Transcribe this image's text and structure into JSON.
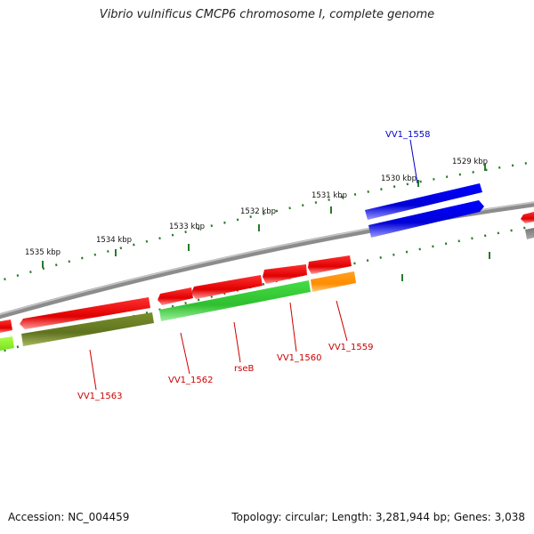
{
  "title": "Vibrio vulnificus CMCP6 chromosome I, complete genome",
  "footer": {
    "accession": "Accession: NC_004459",
    "topology": "Topology: circular; Length: 3,281,944 bp; Genes: 3,038"
  },
  "ruler_labels": [
    "1529 kbp",
    "1530 kbp",
    "1531 kbp",
    "1532 kbp",
    "1533 kbp",
    "1534 kbp",
    "1535 kbp"
  ],
  "gene_labels": [
    {
      "text": "VV1_1558",
      "color": "#0000cc"
    },
    {
      "text": "VV1_1559",
      "color": "#cc0000"
    },
    {
      "text": "VV1_1560",
      "color": "#cc0000"
    },
    {
      "text": "rseB",
      "color": "#cc0000"
    },
    {
      "text": "VV1_1562",
      "color": "#cc0000"
    },
    {
      "text": "VV1_1563",
      "color": "#cc0000"
    }
  ],
  "colors": {
    "backbone": "#888888",
    "ruler": "#2a7a2a",
    "gene_blue": "#0000e0",
    "gene_red": "#e00000",
    "gene_green": "#33cc33",
    "gene_olive": "#667a22",
    "gene_orange": "#ff9900",
    "gene_lime": "#99ee33",
    "gene_gray": "#666666"
  }
}
